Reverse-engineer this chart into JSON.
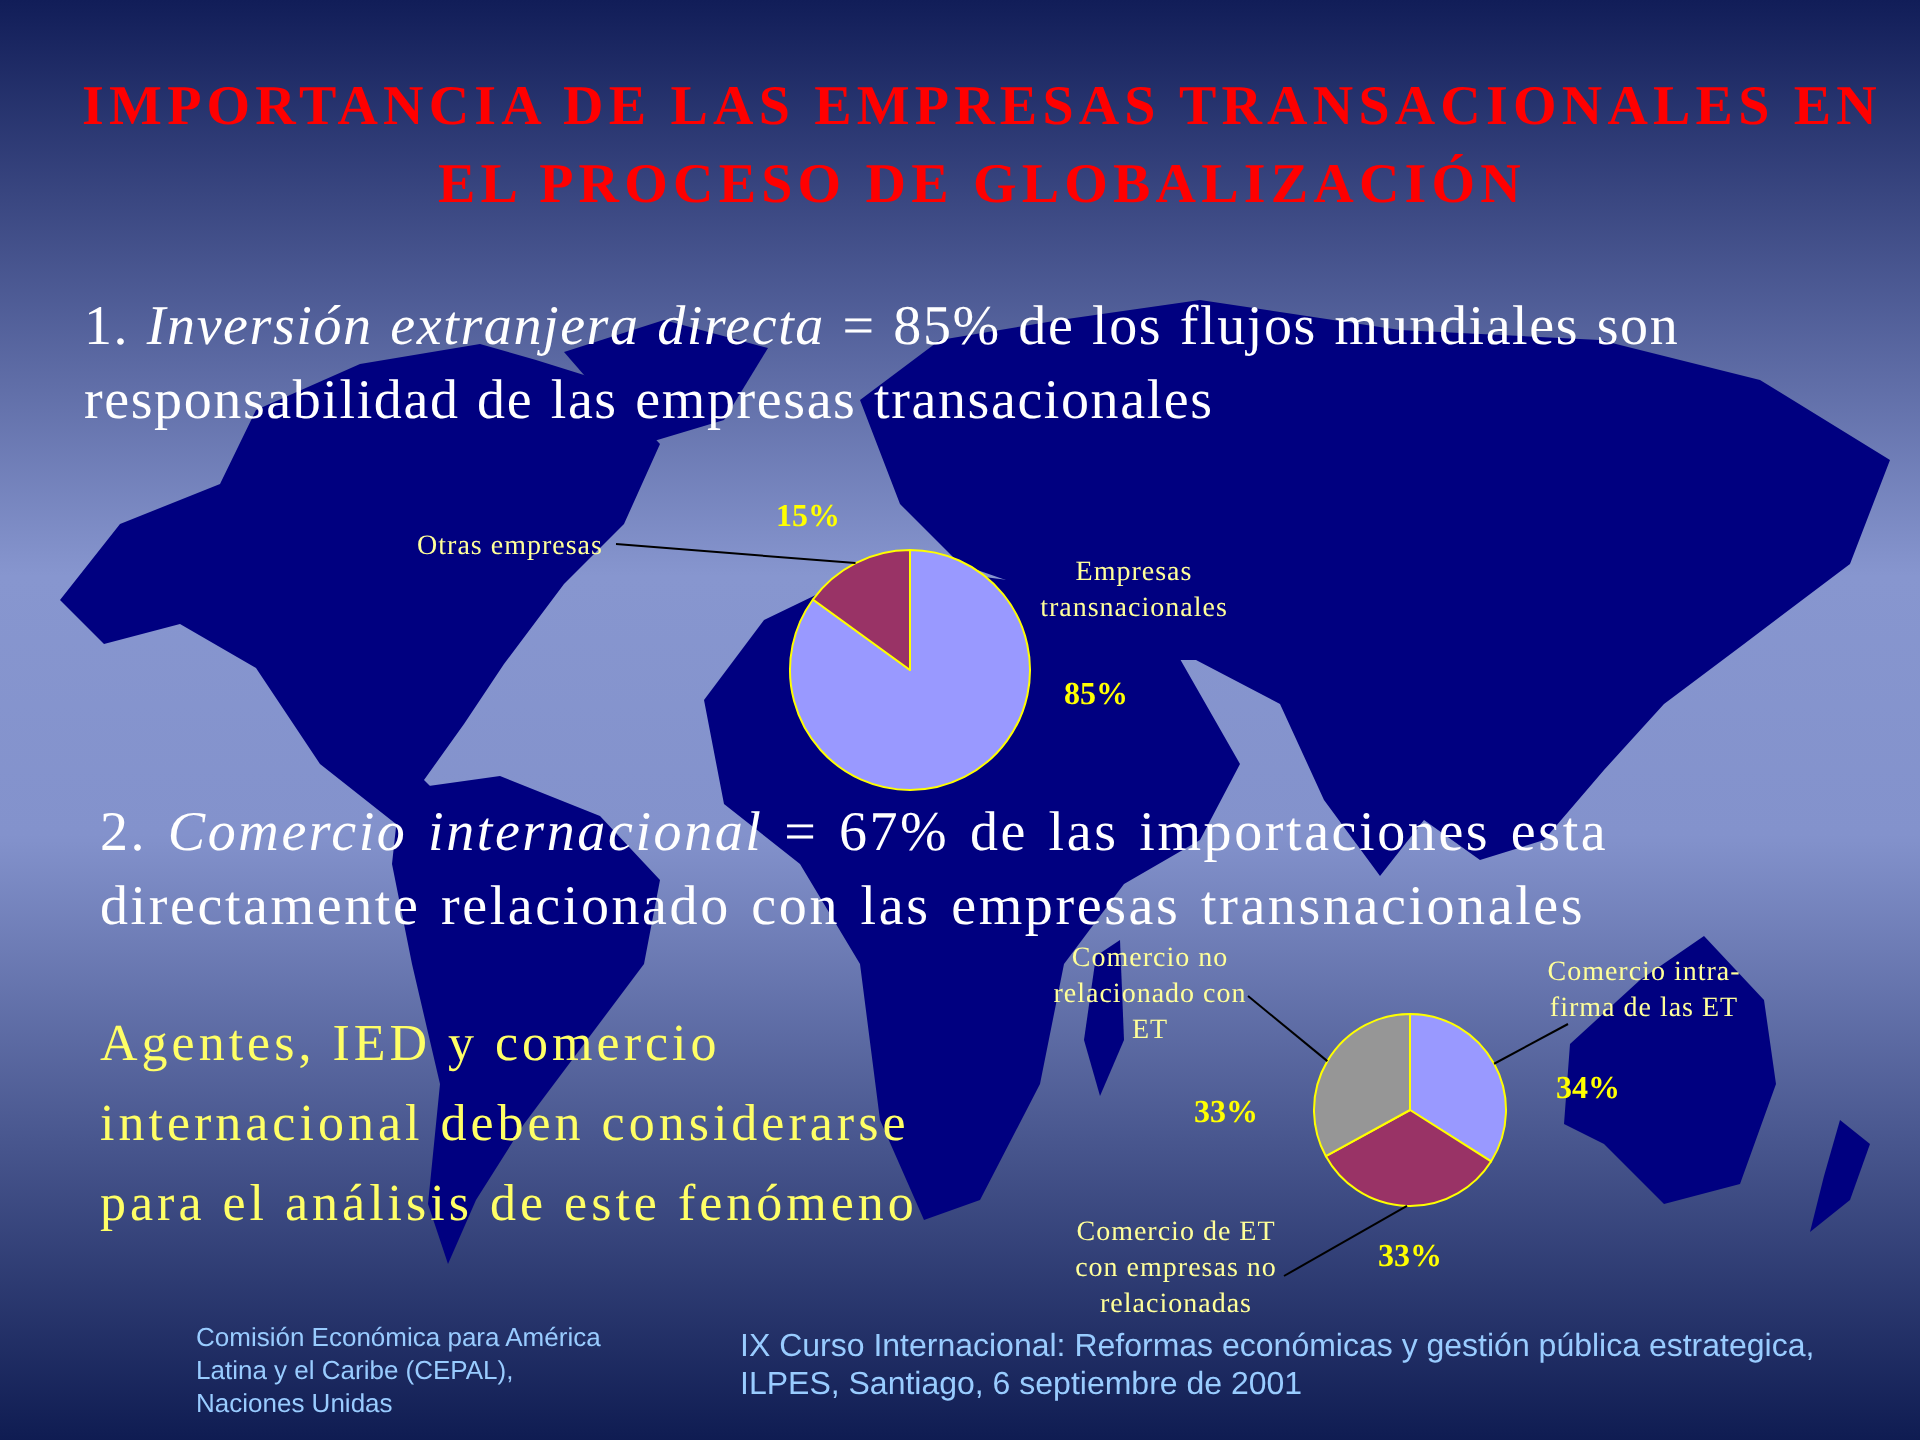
{
  "chart_data": [
    {
      "type": "pie",
      "title": "IMPORTANCIA DE LAS EMPRESAS TRANSACIONALES EN EL PROCESO DE GLOBALIZACIÓN",
      "subtitle": "1. Inversión extranjera directa = 85% de los flujos mundiales son responsabilidad de las empresas transacionales",
      "categories": [
        "Empresas transnacionales",
        "Otras empresas"
      ],
      "values": [
        85,
        15
      ],
      "colors": [
        "#9999ff",
        "#993366"
      ],
      "value_labels": [
        "85%",
        "15%"
      ]
    },
    {
      "type": "pie",
      "subtitle": "2. Comercio internacional = 67% de las importaciones esta directamente relacionado con las empresas transnacionales",
      "categories": [
        "Comercio intra-firma de las ET",
        "Comercio de ET con empresas no relacionadas",
        "Comercio no relacionado con ET"
      ],
      "values": [
        34,
        33,
        33
      ],
      "colors": [
        "#9999ff",
        "#993366",
        "#969696"
      ],
      "value_labels": [
        "34%",
        "33%",
        "33%"
      ]
    },
    {
      "type": "other",
      "annotations": [
        "Agentes, IED y comercio internacional deben considerarse para el análisis de este fenómeno",
        "Comisión Económica para América Latina y el Caribe (CEPAL), Naciones Unidas",
        "IX Curso Internacional: Reformas económicas y gestión pública estrategica, ILPES, Santiago, 6 septiembre de 2001"
      ]
    }
  ]
}
